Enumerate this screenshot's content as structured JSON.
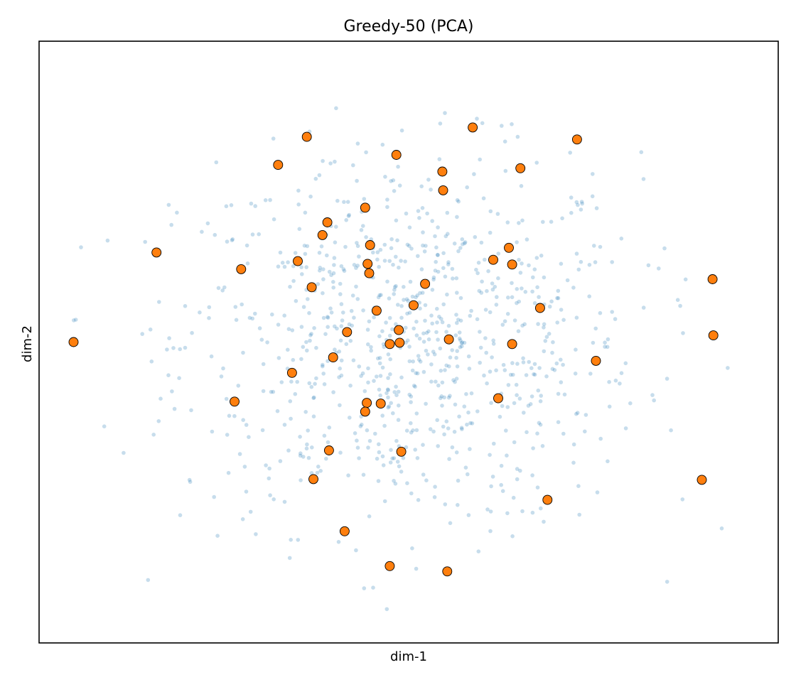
{
  "chart_data": {
    "type": "scatter",
    "title": "Greedy-50 (PCA)",
    "xlabel": "dim-1",
    "ylabel": "dim-2",
    "xlim": [
      -4.5,
      4.5
    ],
    "ylim": [
      -4.5,
      4.5
    ],
    "ticks_visible": false,
    "grid": false,
    "legend": "none",
    "colors": {
      "background_points": "#1f77b4",
      "selected_points": "#ff7f0e",
      "selected_edge": "#000000"
    },
    "background_point_count": 900,
    "series": [
      {
        "name": "",
        "role": "all-points",
        "points": "dense gaussian cloud of ~900 points (approx. std 1.4 on each axis)"
      },
      {
        "name": "",
        "role": "selected",
        "points": [
          [
            -4.08,
            0.0
          ],
          [
            -3.07,
            1.34
          ],
          [
            -2.04,
            1.09
          ],
          [
            -2.12,
            -0.89
          ],
          [
            -1.59,
            2.65
          ],
          [
            -1.24,
            3.07
          ],
          [
            -1.35,
            1.21
          ],
          [
            -1.42,
            -0.46
          ],
          [
            -1.18,
            0.82
          ],
          [
            -1.05,
            1.6
          ],
          [
            -0.99,
            1.79
          ],
          [
            -1.16,
            -2.05
          ],
          [
            -0.92,
            -0.23
          ],
          [
            -0.75,
            0.15
          ],
          [
            -0.97,
            -1.62
          ],
          [
            -0.78,
            -2.83
          ],
          [
            -0.53,
            2.01
          ],
          [
            -0.5,
            1.17
          ],
          [
            -0.48,
            1.03
          ],
          [
            -0.51,
            -0.91
          ],
          [
            -0.53,
            -1.04
          ],
          [
            -0.39,
            0.47
          ],
          [
            -0.34,
            -0.92
          ],
          [
            -0.15,
            2.8
          ],
          [
            -0.12,
            0.18
          ],
          [
            -0.11,
            -0.01
          ],
          [
            -0.23,
            -0.03
          ],
          [
            -0.09,
            -1.64
          ],
          [
            0.06,
            0.55
          ],
          [
            0.41,
            2.55
          ],
          [
            0.42,
            2.27
          ],
          [
            0.49,
            0.04
          ],
          [
            -0.23,
            -3.35
          ],
          [
            0.47,
            -3.43
          ],
          [
            0.78,
            3.21
          ],
          [
            1.03,
            1.23
          ],
          [
            1.09,
            -0.84
          ],
          [
            1.22,
            1.41
          ],
          [
            1.26,
            1.16
          ],
          [
            1.26,
            -0.03
          ],
          [
            1.36,
            2.6
          ],
          [
            1.6,
            0.51
          ],
          [
            1.69,
            -2.36
          ],
          [
            2.05,
            3.03
          ],
          [
            2.28,
            -0.28
          ],
          [
            3.57,
            -2.06
          ],
          [
            3.7,
            0.94
          ],
          [
            3.71,
            0.1
          ],
          [
            0.2,
            0.87
          ],
          [
            -0.47,
            1.45
          ]
        ]
      }
    ]
  }
}
